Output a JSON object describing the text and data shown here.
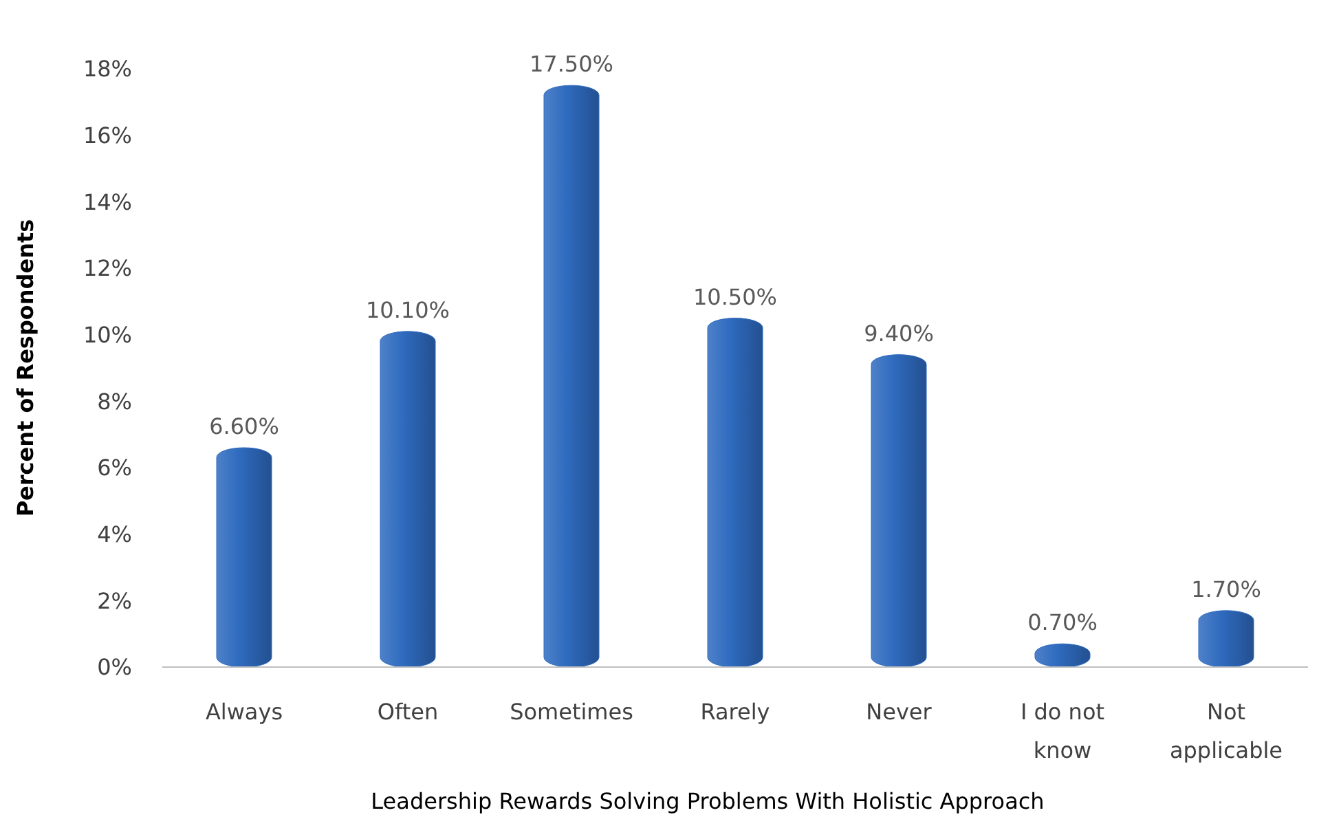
{
  "chart_data": {
    "type": "bar",
    "xlabel": "Leadership Rewards Solving Problems With Holistic Approach",
    "ylabel": "Percent of Respondents",
    "categories": [
      "Always",
      "Often",
      "Sometimes",
      "Rarely",
      "Never",
      "I do not know",
      "Not applicable"
    ],
    "values": [
      6.6,
      10.1,
      17.5,
      10.5,
      9.4,
      0.7,
      1.7
    ],
    "value_labels": [
      "6.60%",
      "10.10%",
      "17.50%",
      "10.50%",
      "9.40%",
      "0.70%",
      "1.70%"
    ],
    "color": "#2f6bbf",
    "ylim": [
      0,
      18
    ],
    "yticks": [
      {
        "value": 0,
        "label": "0%"
      },
      {
        "value": 2,
        "label": "2%"
      },
      {
        "value": 4,
        "label": "4%"
      },
      {
        "value": 6,
        "label": "6%"
      },
      {
        "value": 8,
        "label": "8%"
      },
      {
        "value": 10,
        "label": "10%"
      },
      {
        "value": 12,
        "label": "12%"
      },
      {
        "value": 14,
        "label": "14%"
      },
      {
        "value": 16,
        "label": "16%"
      },
      {
        "value": 18,
        "label": "18%"
      }
    ],
    "grid": false
  }
}
